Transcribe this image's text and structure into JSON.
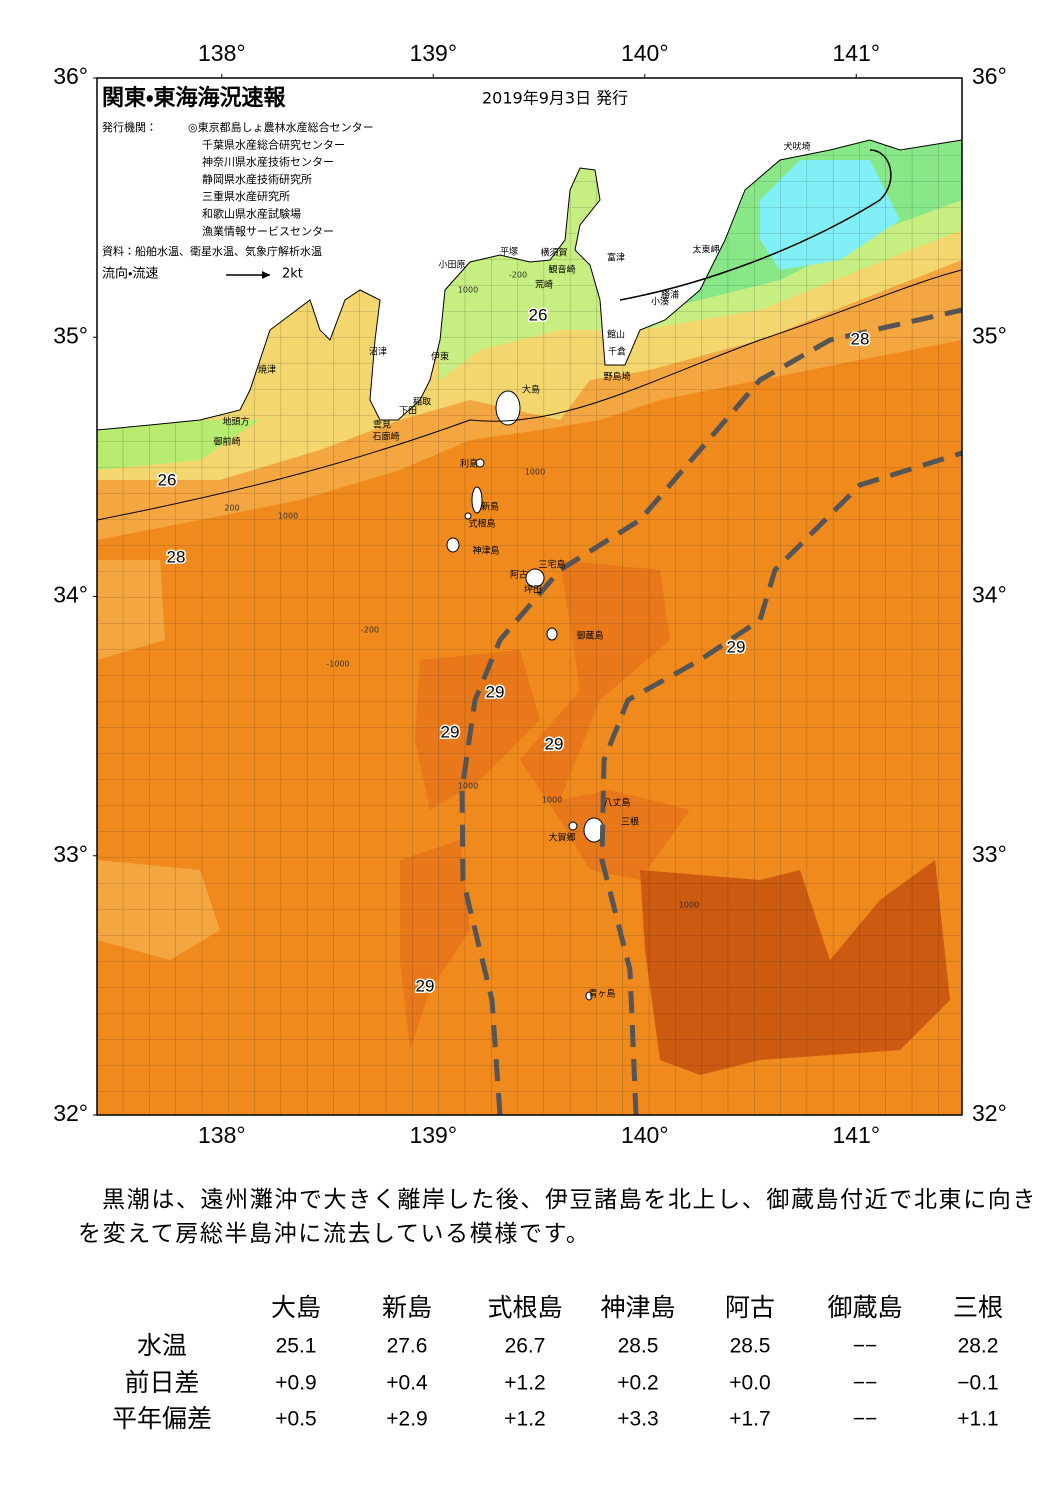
{
  "map": {
    "title": "関東・東海海況速報",
    "issue_date": "2019年9月3日 発行",
    "issuer_label": "発行機関：",
    "issuers": [
      "◎東京都島しょ農林水産総合センター",
      "千葉県水産総合研究センター",
      "神奈川県水産技術センター",
      "静岡県水産技術研究所",
      "三重県水産研究所",
      "和歌山県水産試験場",
      "漁業情報サービスセンター"
    ],
    "sources": "資料：船舶水温、衛星水温、気象庁解析水温",
    "current_legend": "流向・流速",
    "current_scale": "2kt",
    "xlim": [
      137.41,
      141.5
    ],
    "ylim": [
      32,
      36
    ],
    "xticks": [
      {
        "value": 138,
        "label": "138°"
      },
      {
        "value": 139,
        "label": "139°"
      },
      {
        "value": 140,
        "label": "140°"
      },
      {
        "value": 141,
        "label": "141°"
      }
    ],
    "yticks": [
      {
        "value": 32,
        "label": "32°"
      },
      {
        "value": 33,
        "label": "33°"
      },
      {
        "value": 34,
        "label": "34°"
      },
      {
        "value": 35,
        "label": "35°"
      },
      {
        "value": 36,
        "label": "36°"
      }
    ],
    "places": [
      "犬吠埼",
      "太東岬",
      "勝浦",
      "小湊",
      "館山",
      "千倉",
      "野島埼",
      "富津",
      "横須賀",
      "観音崎",
      "荒崎",
      "平塚",
      "小田原",
      "大島",
      "沼津",
      "伊東",
      "稲取",
      "下田",
      "雲見",
      "石廊崎",
      "焼津",
      "地頭方",
      "御前崎",
      "利島",
      "新島",
      "式根島",
      "神津島",
      "三宅島",
      "阿古",
      "坪田",
      "御蔵島",
      "八丈島",
      "三根",
      "大賀郷",
      "青ヶ島"
    ],
    "contour_labels": [
      "26",
      "26",
      "28",
      "28",
      "29",
      "29",
      "29",
      "29",
      "29"
    ],
    "depth_labels": [
      "-200",
      "1000",
      "200",
      "1000",
      "-200",
      "1000",
      "-1000",
      "1000",
      "1000",
      "1000"
    ]
  },
  "summary": "黒潮は、遠州灘沖で大きく離岸した後、伊豆諸島を北上し、御蔵島付近で北東に向きを変えて房総半島沖に流去している模様です。",
  "table": {
    "columns": [
      "大島",
      "新島",
      "式根島",
      "神津島",
      "阿古",
      "御蔵島",
      "三根"
    ],
    "rows": [
      {
        "label": "水温",
        "values": [
          25.1,
          27.6,
          26.7,
          28.5,
          28.5,
          "−−",
          28.2
        ]
      },
      {
        "label": "前日差",
        "values": [
          "+0.9",
          "+0.4",
          "+1.2",
          "+0.2",
          "+0.0",
          "−−",
          "−0.1"
        ]
      },
      {
        "label": "平年偏差",
        "values": [
          "+0.5",
          "+2.9",
          "+1.2",
          "+3.3",
          "+1.7",
          "−−",
          "+1.1"
        ]
      }
    ]
  }
}
